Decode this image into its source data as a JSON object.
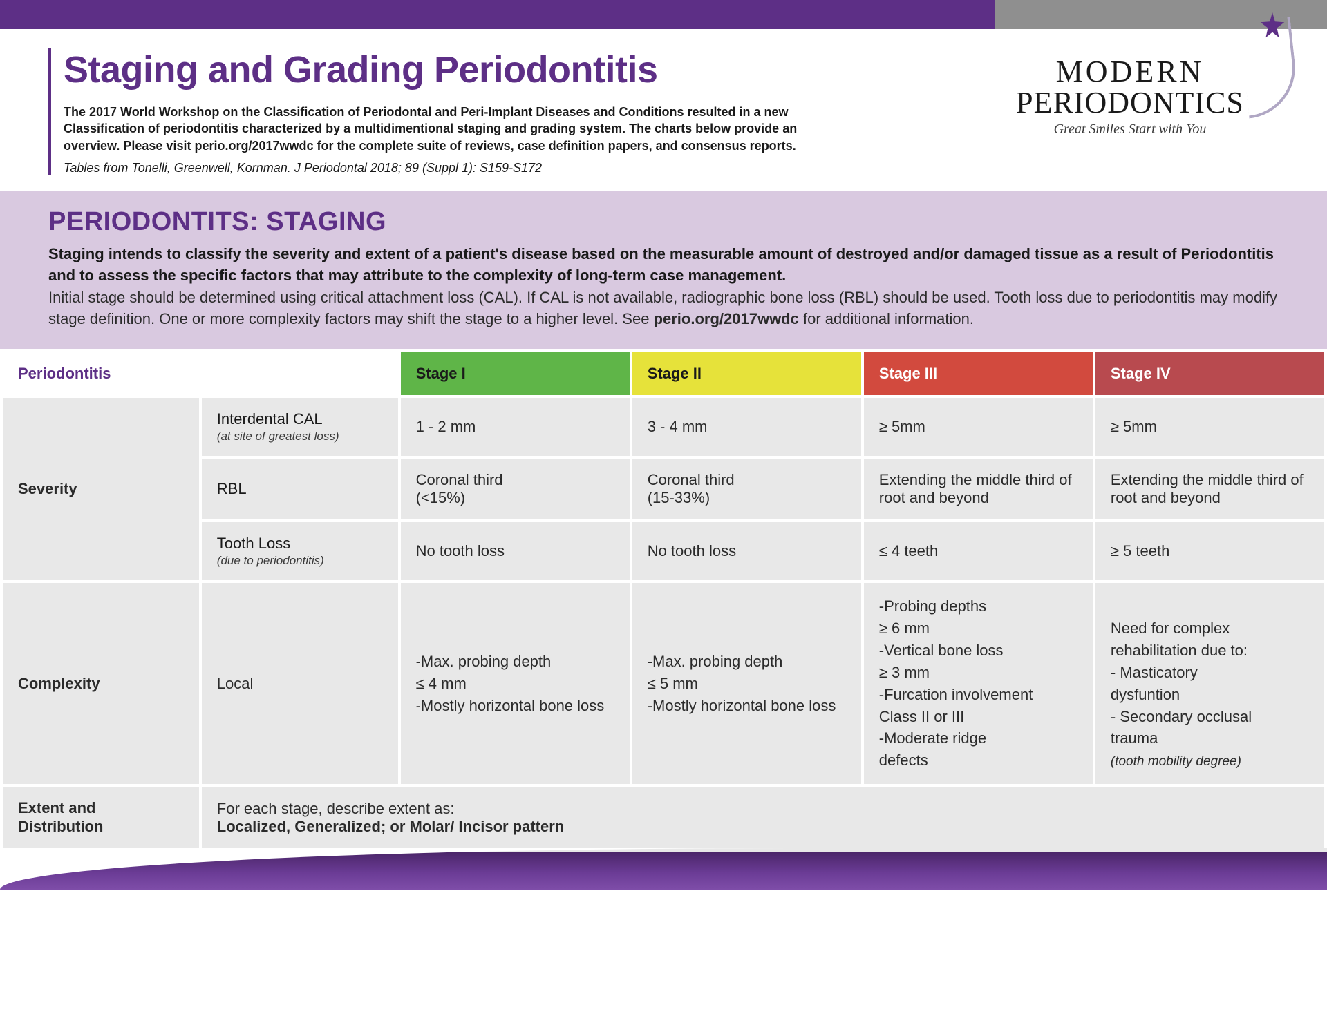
{
  "colors": {
    "purple": "#5d2f86",
    "gray": "#8f8f8f",
    "lavender": "#d9c9e0",
    "cell": "#e8e8e8",
    "stage1": "#5fb548",
    "stage2": "#e6e23a",
    "stage3": "#d24a3e",
    "stage4": "#b84a4f"
  },
  "header": {
    "title": "Staging and Grading Periodontitis",
    "subtitle": "The 2017 World Workshop on the Classification of Periodontal and Peri-Implant Diseases and Conditions resulted in a new Classification of periodontitis characterized by a multidimentional staging and grading system. The charts below provide an overview. Please visit perio.org/2017wwdc for the complete suite of reviews, case definition papers, and consensus reports.",
    "citation": "Tables from Tonelli, Greenwell, Kornman. J Periodontal 2018; 89 (Suppl 1): S159-S172"
  },
  "logo": {
    "line1": "MODERN",
    "line2": "PERIODONTICS",
    "tagline": "Great Smiles Start with You"
  },
  "staging_intro": {
    "title": "PERIODONTITS: STAGING",
    "bold": "Staging intends to classify the severity and extent of a patient's disease based on the measurable amount of destroyed and/or damaged tissue as a result of Periodontitis and to assess the specific factors that may attribute to the complexity of long-term case management.",
    "body_pre": "Initial stage should be determined using critical attachment loss (CAL). If CAL is not available, radiographic bone loss (RBL) should be used. Tooth loss due to periodontitis may modify stage definition. One or more complexity factors may shift the stage to a higher level. See ",
    "body_bold": "perio.org/2017wwdc",
    "body_post": " for additional information."
  },
  "table": {
    "col_widths_pct": [
      15,
      15,
      17.5,
      17.5,
      17.5,
      17.5
    ],
    "header_label": "Periodontitis",
    "stages": [
      "Stage I",
      "Stage II",
      "Stage III",
      "Stage IV"
    ],
    "severity": {
      "label": "Severity",
      "rows": [
        {
          "name": "Interdental CAL",
          "note": "(at site of greatest loss)",
          "cells": [
            "1 - 2 mm",
            "3 - 4 mm",
            "≥  5mm",
            "≥  5mm"
          ]
        },
        {
          "name": "RBL",
          "note": "",
          "cells": [
            "Coronal third\n   (<15%)",
            "Coronal third\n   (15-33%)",
            "Extending the middle third of root and beyond",
            "Extending the middle third of root and beyond"
          ]
        },
        {
          "name": "Tooth Loss",
          "note": "(due to periodontitis)",
          "cells": [
            "No tooth loss",
            "No tooth loss",
            "≤  4 teeth",
            "≥  5 teeth"
          ]
        }
      ]
    },
    "complexity": {
      "label": "Complexity",
      "sublabel": "Local",
      "cells": [
        "-Max. probing depth\n≤ 4 mm\n-Mostly horizontal bone loss",
        "-Max. probing depth\n≤ 5 mm\n-Mostly horizontal bone loss",
        "-Probing depths\n≥ 6 mm\n-Vertical bone loss\n≥ 3 mm\n-Furcation involvement\n Class II or III\n-Moderate ridge\n defects",
        "Need for complex rehabilitation due to:\n- Masticatory\n  dysfuntion\n- Secondary occlusal\n  trauma\n(tooth mobility degree)"
      ]
    },
    "extent": {
      "label": "Extent and Distribution",
      "lead": "For each stage, describe extent as:",
      "bold": "Localized, Generalized; or Molar/ Incisor pattern"
    }
  }
}
